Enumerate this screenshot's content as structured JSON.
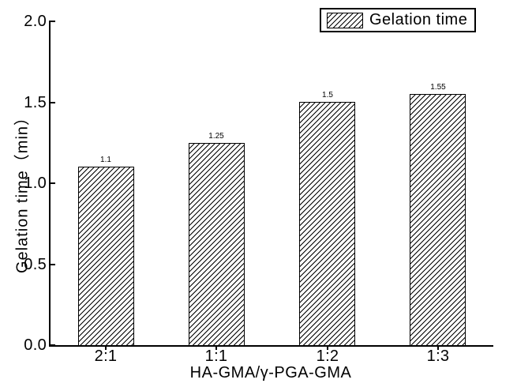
{
  "chart_data": {
    "type": "bar",
    "categories": [
      "2:1",
      "1:1",
      "1:2",
      "1:3"
    ],
    "values": [
      1.1,
      1.25,
      1.5,
      1.55
    ],
    "value_labels": [
      "1.1",
      "1.25",
      "1.5",
      "1.55"
    ],
    "title": "",
    "xlabel": "HA-GMA/γ-PGA-GMA",
    "ylabel": "Gelation time（min）",
    "ylim": [
      0.0,
      2.0
    ],
    "ytick_labels": [
      "0.0",
      "0.5",
      "1.0",
      "1.5",
      "2.0"
    ],
    "ytick_values": [
      0.0,
      0.5,
      1.0,
      1.5,
      2.0
    ],
    "grid": false,
    "legend": {
      "label": "Gelation time",
      "position": "top-right"
    },
    "bar_style": {
      "fill": "#ffffff",
      "hatch": "diagonal-forward-slash",
      "edge_color": "#000000"
    },
    "axis_color": "#000000",
    "text_color": "#000000",
    "background": "#ffffff"
  }
}
